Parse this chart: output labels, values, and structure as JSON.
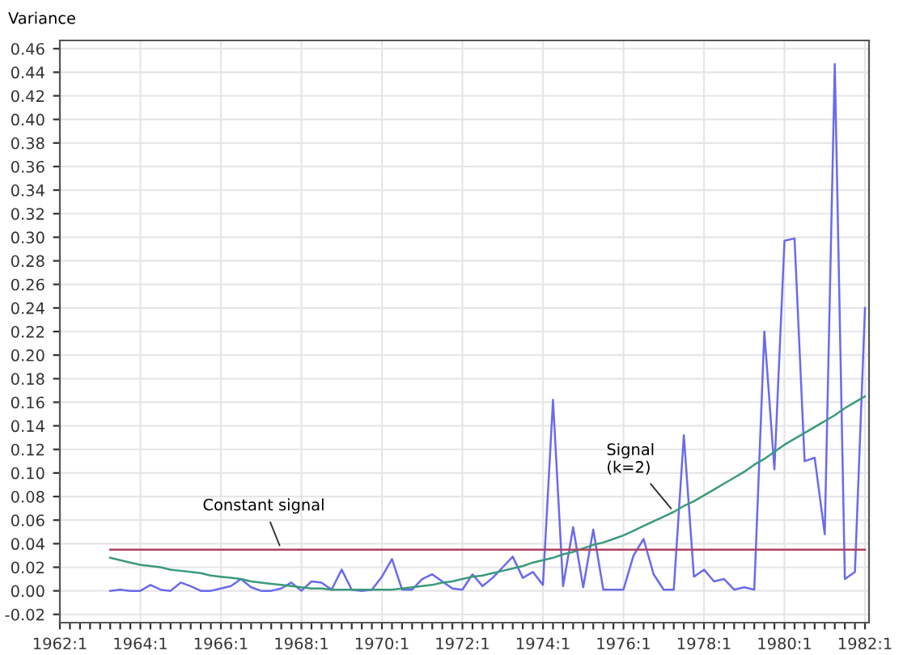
{
  "chart_data": {
    "type": "line",
    "ylabel": "Variance",
    "grid": true,
    "legend": false,
    "marker": "none",
    "categories": [
      "1962:1",
      null,
      null,
      null,
      null,
      null,
      null,
      null,
      "1964:1",
      null,
      null,
      null,
      null,
      null,
      null,
      null,
      "1966:1",
      null,
      null,
      null,
      null,
      null,
      null,
      null,
      "1968:1",
      null,
      null,
      null,
      null,
      null,
      null,
      null,
      "1970:1",
      null,
      null,
      null,
      null,
      null,
      null,
      null,
      "1972:1",
      null,
      null,
      null,
      null,
      null,
      null,
      null,
      "1974:1",
      null,
      null,
      null,
      null,
      null,
      null,
      null,
      "1976:1",
      null,
      null,
      null,
      null,
      null,
      null,
      null,
      "1978:1",
      null,
      null,
      null,
      null,
      null,
      null,
      null,
      "1980:1",
      null,
      null,
      null,
      null,
      null,
      null,
      null,
      "1982:1"
    ],
    "series": [
      {
        "color": "#6a6aee",
        "values": [
          null,
          null,
          null,
          null,
          null,
          0.0,
          0.001,
          0.0,
          0.0,
          0.005,
          0.001,
          0.0,
          0.007,
          0.004,
          0.0,
          0.0,
          0.002,
          0.004,
          0.01,
          0.003,
          0.0,
          0.0,
          0.002,
          0.007,
          0.0,
          0.008,
          0.007,
          0.001,
          0.018,
          0.001,
          0.0,
          0.001,
          0.012,
          0.027,
          0.001,
          0.001,
          0.01,
          0.014,
          0.008,
          0.002,
          0.001,
          0.014,
          0.004,
          0.011,
          0.02,
          0.029,
          0.011,
          0.016,
          0.005,
          0.162,
          0.004,
          0.054,
          0.003,
          0.052,
          0.001,
          0.001,
          0.001,
          0.03,
          0.044,
          0.014,
          0.001,
          0.001,
          0.132,
          0.012,
          0.018,
          0.008,
          0.01,
          0.001,
          0.003,
          0.001,
          0.22,
          0.103,
          0.297,
          0.299,
          0.11,
          0.113,
          0.048,
          0.447,
          0.01,
          0.016,
          0.24
        ]
      },
      {
        "name": "Signal\n(k=2)",
        "color": "#3a9a7a",
        "values": [
          null,
          null,
          null,
          null,
          null,
          0.028,
          0.026,
          0.024,
          0.022,
          0.021,
          0.02,
          0.018,
          0.017,
          0.016,
          0.015,
          0.013,
          0.012,
          0.011,
          0.01,
          0.008,
          0.007,
          0.006,
          0.005,
          0.004,
          0.003,
          0.002,
          0.002,
          0.001,
          0.001,
          0.001,
          0.001,
          0.001,
          0.001,
          0.001,
          0.002,
          0.003,
          0.004,
          0.005,
          0.007,
          0.008,
          0.01,
          0.012,
          0.013,
          0.015,
          0.017,
          0.019,
          0.021,
          0.024,
          0.026,
          0.028,
          0.031,
          0.033,
          0.036,
          0.039,
          0.041,
          0.044,
          0.047,
          0.051,
          0.055,
          0.059,
          0.063,
          0.067,
          0.072,
          0.076,
          0.081,
          0.086,
          0.091,
          0.096,
          0.101,
          0.107,
          0.112,
          0.118,
          0.124,
          0.129,
          0.134,
          0.139,
          0.144,
          0.149,
          0.155,
          0.16,
          0.165
        ]
      },
      {
        "name": "Constant signal",
        "color": "#b04060",
        "values": [
          null,
          null,
          null,
          null,
          null,
          0.035,
          0.035,
          0.035,
          0.035,
          0.035,
          0.035,
          0.035,
          0.035,
          0.035,
          0.035,
          0.035,
          0.035,
          0.035,
          0.035,
          0.035,
          0.035,
          0.035,
          0.035,
          0.035,
          0.035,
          0.035,
          0.035,
          0.035,
          0.035,
          0.035,
          0.035,
          0.035,
          0.035,
          0.035,
          0.035,
          0.035,
          0.035,
          0.035,
          0.035,
          0.035,
          0.035,
          0.035,
          0.035,
          0.035,
          0.035,
          0.035,
          0.035,
          0.035,
          0.035,
          0.035,
          0.035,
          0.035,
          0.035,
          0.035,
          0.035,
          0.035,
          0.035,
          0.035,
          0.035,
          0.035,
          0.035,
          0.035,
          0.035,
          0.035,
          0.035,
          0.035,
          0.035,
          0.035,
          0.035,
          0.035,
          0.035,
          0.035,
          0.035,
          0.035,
          0.035,
          0.035,
          0.035,
          0.035,
          0.035,
          0.035,
          0.035
        ]
      }
    ],
    "ylim": [
      -0.027,
      0.467
    ],
    "yticks": [
      {
        "value": -0.02,
        "label": "-0.02"
      },
      {
        "value": 0,
        "label": "0.00"
      },
      {
        "value": 0.02,
        "label": "0.02"
      },
      {
        "value": 0.04,
        "label": "0.04"
      },
      {
        "value": 0.06,
        "label": "0.06"
      },
      {
        "value": 0.08,
        "label": "0.08"
      },
      {
        "value": 0.1,
        "label": "0.10"
      },
      {
        "value": 0.12,
        "label": "0.12"
      },
      {
        "value": 0.14,
        "label": "0.14"
      },
      {
        "value": 0.16,
        "label": "0.16"
      },
      {
        "value": 0.18,
        "label": "0.18"
      },
      {
        "value": 0.2,
        "label": "0.20"
      },
      {
        "value": 0.22,
        "label": "0.22"
      },
      {
        "value": 0.24,
        "label": "0.24"
      },
      {
        "value": 0.26,
        "label": "0.26"
      },
      {
        "value": 0.28,
        "label": "0.28"
      },
      {
        "value": 0.3,
        "label": "0.30"
      },
      {
        "value": 0.32,
        "label": "0.32"
      },
      {
        "value": 0.34,
        "label": "0.34"
      },
      {
        "value": 0.36,
        "label": "0.36"
      },
      {
        "value": 0.38,
        "label": "0.38"
      },
      {
        "value": 0.4,
        "label": "0.40"
      },
      {
        "value": 0.42,
        "label": "0.42"
      },
      {
        "value": 0.44,
        "label": "0.44"
      },
      {
        "value": 0.46,
        "label": "0.46"
      }
    ]
  }
}
